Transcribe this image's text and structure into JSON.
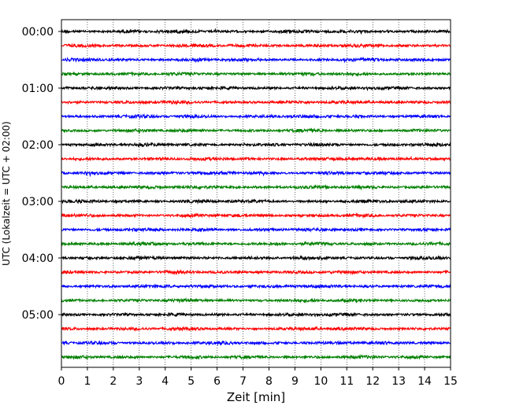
{
  "chart_data": {
    "type": "line",
    "xlabel": "Zeit  [min]",
    "ylabel": "UTC (Lokalzeit = UTC + 02:00)",
    "xlim": [
      0,
      15
    ],
    "x_ticks": [
      0,
      1,
      2,
      3,
      4,
      5,
      6,
      7,
      8,
      9,
      10,
      11,
      12,
      13,
      14,
      15
    ],
    "y_tick_labels": [
      "00:00",
      "01:00",
      "02:00",
      "03:00",
      "04:00",
      "05:00"
    ],
    "grid": "vertical-dotted",
    "trace_interval_min": 15,
    "trace_start": "00:00",
    "trace_count": 24,
    "trace_colors": [
      "#000000",
      "#ff0000",
      "#0000ff",
      "#008000"
    ]
  }
}
